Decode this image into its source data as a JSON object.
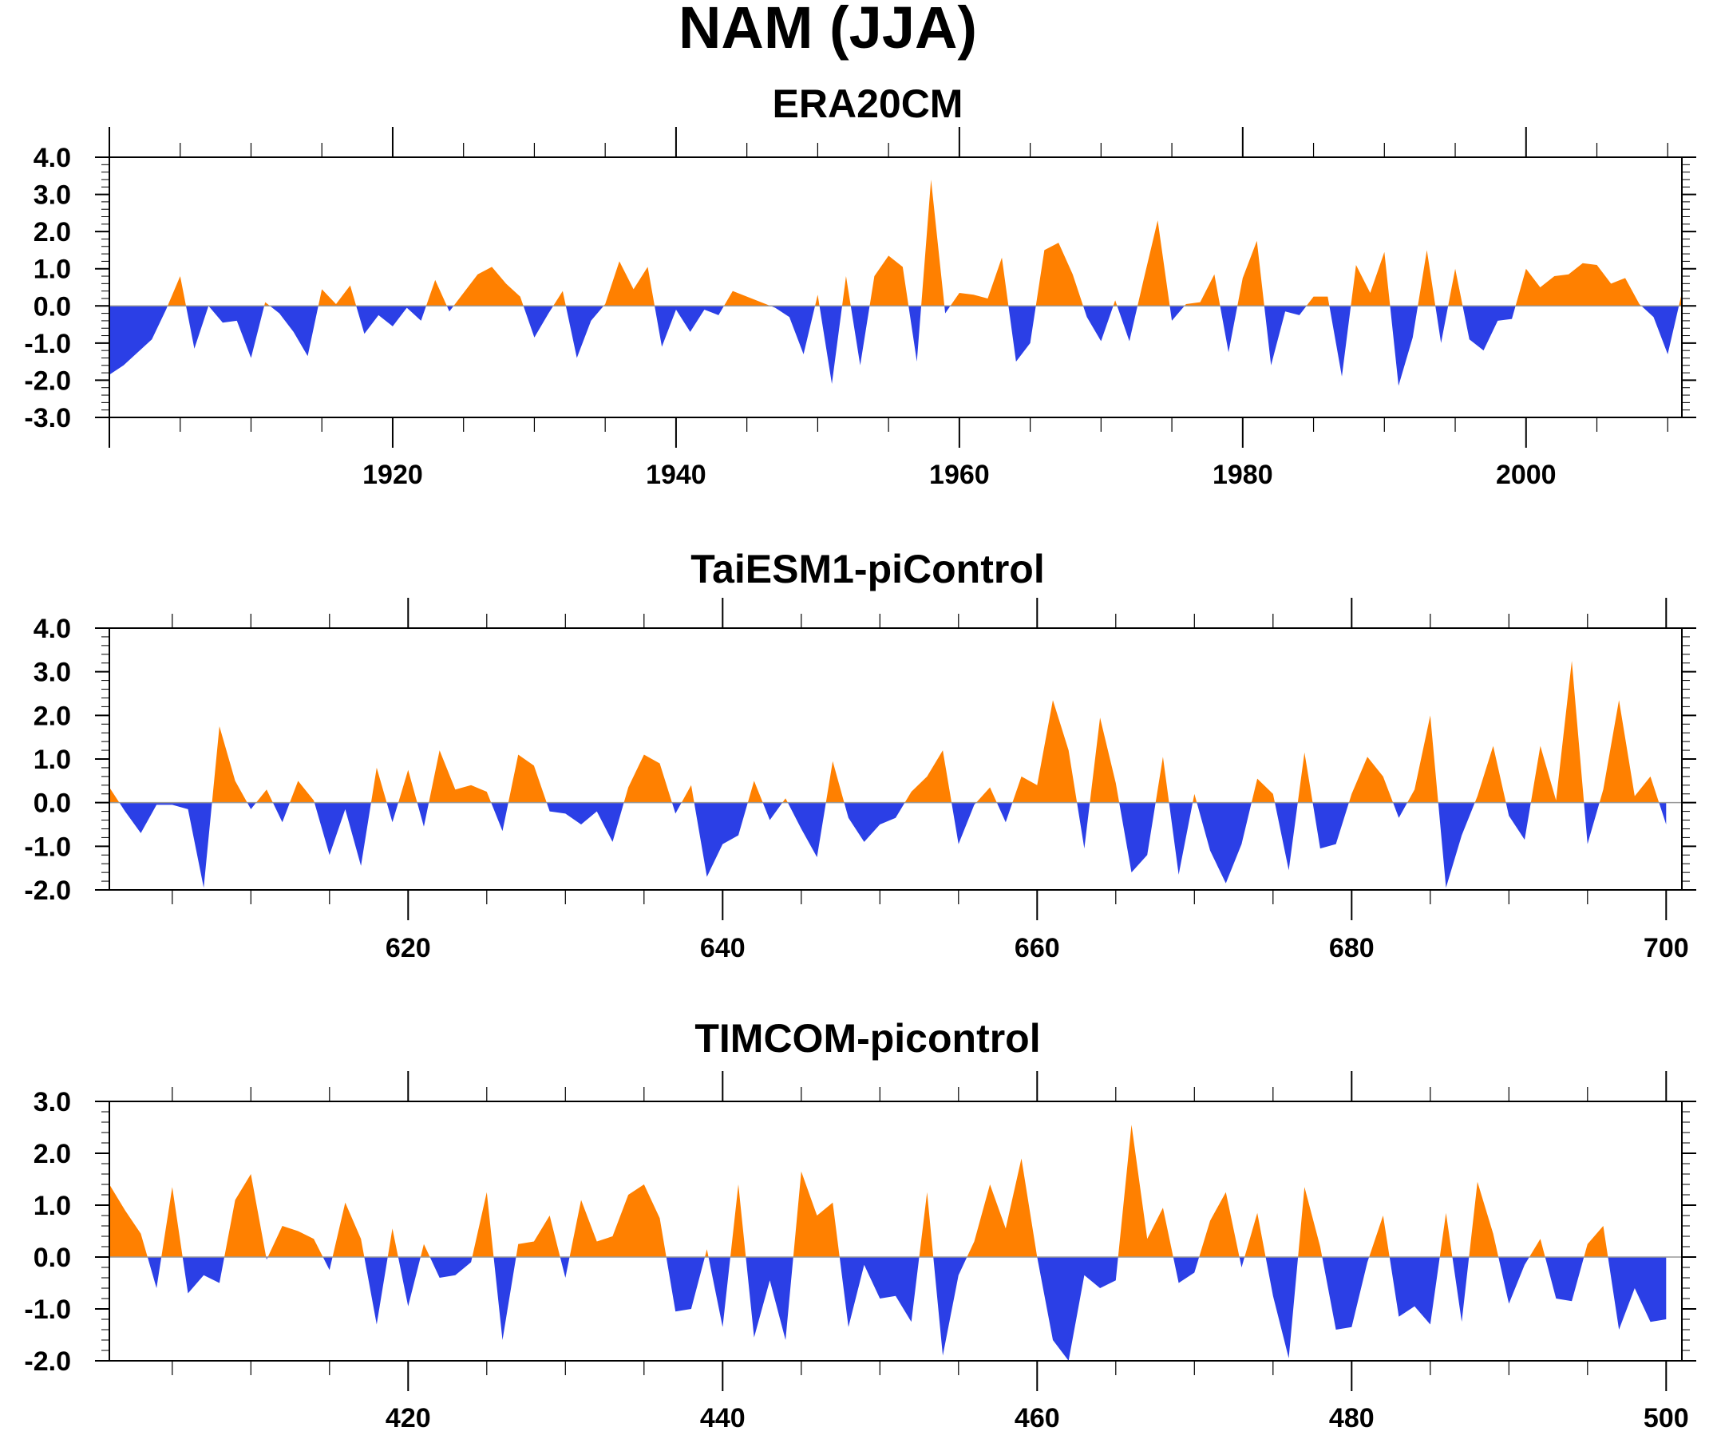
{
  "figure": {
    "title": "NAM (JJA)"
  },
  "colors": {
    "positive": "#ff8000",
    "negative": "#2b3fe6",
    "axis": "#000000"
  },
  "chart_data": [
    {
      "type": "area",
      "title": "ERA20CM",
      "xlabel": "",
      "ylabel": "",
      "xlim": [
        1900,
        2011
      ],
      "ylim": [
        -3.0,
        4.0
      ],
      "yticks": [
        -3.0,
        -2.0,
        -1.0,
        0.0,
        1.0,
        2.0,
        3.0,
        4.0
      ],
      "yticklabels": [
        "-3.0",
        "-2.0",
        "-1.0",
        "0.0",
        "1.0",
        "2.0",
        "3.0",
        "4.0"
      ],
      "xticks": [
        1920,
        1940,
        1960,
        1980,
        2000
      ],
      "xticklabels": [
        "1920",
        "1940",
        "1960",
        "1980",
        "2000"
      ],
      "fill_above_zero": "positive",
      "fill_below_zero": "negative",
      "x": [
        1900,
        1901,
        1902,
        1903,
        1904,
        1905,
        1906,
        1907,
        1908,
        1909,
        1910,
        1911,
        1912,
        1913,
        1914,
        1915,
        1916,
        1917,
        1918,
        1919,
        1920,
        1921,
        1922,
        1923,
        1924,
        1925,
        1926,
        1927,
        1928,
        1929,
        1930,
        1931,
        1932,
        1933,
        1934,
        1935,
        1936,
        1937,
        1938,
        1939,
        1940,
        1941,
        1942,
        1943,
        1944,
        1945,
        1946,
        1947,
        1948,
        1949,
        1950,
        1951,
        1952,
        1953,
        1954,
        1955,
        1956,
        1957,
        1958,
        1959,
        1960,
        1961,
        1962,
        1963,
        1964,
        1965,
        1966,
        1967,
        1968,
        1969,
        1970,
        1971,
        1972,
        1973,
        1974,
        1975,
        1976,
        1977,
        1978,
        1979,
        1980,
        1981,
        1982,
        1983,
        1984,
        1985,
        1986,
        1987,
        1988,
        1989,
        1990,
        1991,
        1992,
        1993,
        1994,
        1995,
        1996,
        1997,
        1998,
        1999,
        2000,
        2001,
        2002,
        2003,
        2004,
        2005,
        2006,
        2007,
        2008,
        2009,
        2010,
        2011
      ],
      "values": [
        -1.85,
        -1.6,
        -1.25,
        -0.9,
        -0.1,
        0.8,
        -1.15,
        0.0,
        -0.45,
        -0.4,
        -1.4,
        0.1,
        -0.2,
        -0.7,
        -1.35,
        0.45,
        0.05,
        0.55,
        -0.75,
        -0.25,
        -0.55,
        -0.05,
        -0.4,
        0.7,
        -0.15,
        0.35,
        0.85,
        1.05,
        0.6,
        0.25,
        -0.85,
        -0.2,
        0.4,
        -1.4,
        -0.4,
        0.05,
        1.2,
        0.45,
        1.05,
        -1.1,
        -0.1,
        -0.7,
        -0.1,
        -0.25,
        0.4,
        0.25,
        0.1,
        -0.05,
        -0.3,
        -1.3,
        0.3,
        -2.1,
        0.8,
        -1.6,
        0.8,
        1.35,
        1.05,
        -1.5,
        3.4,
        -0.2,
        0.35,
        0.3,
        0.2,
        1.3,
        -1.5,
        -1.0,
        1.5,
        1.7,
        0.85,
        -0.3,
        -0.95,
        0.15,
        -0.95,
        0.7,
        2.3,
        -0.4,
        0.05,
        0.1,
        0.85,
        -1.25,
        0.75,
        1.75,
        -1.6,
        -0.15,
        -0.25,
        0.25,
        0.25,
        -1.9,
        1.1,
        0.35,
        1.45,
        -2.15,
        -0.85,
        1.5,
        -1.0,
        1.0,
        -0.9,
        -1.2,
        -0.4,
        -0.35,
        1.0,
        0.5,
        0.8,
        0.85,
        1.15,
        1.1,
        0.6,
        0.75,
        0.05,
        -0.3,
        -1.3,
        0.35
      ]
    },
    {
      "type": "area",
      "title": "TaiESM1-piControl",
      "xlabel": "",
      "ylabel": "",
      "xlim": [
        601,
        701
      ],
      "ylim": [
        -2.0,
        4.0
      ],
      "yticks": [
        -2.0,
        -1.0,
        0.0,
        1.0,
        2.0,
        3.0,
        4.0
      ],
      "yticklabels": [
        "-2.0",
        "-1.0",
        "0.0",
        "1.0",
        "2.0",
        "3.0",
        "4.0"
      ],
      "xticks": [
        620,
        640,
        660,
        680,
        700
      ],
      "xticklabels": [
        "620",
        "640",
        "660",
        "680",
        "700"
      ],
      "fill_above_zero": "positive",
      "fill_below_zero": "negative",
      "x": [
        601,
        602,
        603,
        604,
        605,
        606,
        607,
        608,
        609,
        610,
        611,
        612,
        613,
        614,
        615,
        616,
        617,
        618,
        619,
        620,
        621,
        622,
        623,
        624,
        625,
        626,
        627,
        628,
        629,
        630,
        631,
        632,
        633,
        634,
        635,
        636,
        637,
        638,
        639,
        640,
        641,
        642,
        643,
        644,
        645,
        646,
        647,
        648,
        649,
        650,
        651,
        652,
        653,
        654,
        655,
        656,
        657,
        658,
        659,
        660,
        661,
        662,
        663,
        664,
        665,
        666,
        667,
        668,
        669,
        670,
        671,
        672,
        673,
        674,
        675,
        676,
        677,
        678,
        679,
        680,
        681,
        682,
        683,
        684,
        685,
        686,
        687,
        688,
        689,
        690,
        691,
        692,
        693,
        694,
        695,
        696,
        697,
        698,
        699,
        700
      ],
      "values": [
        0.35,
        -0.2,
        -0.7,
        -0.05,
        -0.05,
        -0.15,
        -1.95,
        1.75,
        0.5,
        -0.15,
        0.3,
        -0.45,
        0.5,
        0.05,
        -1.2,
        -0.15,
        -1.45,
        0.8,
        -0.45,
        0.75,
        -0.55,
        1.2,
        0.3,
        0.4,
        0.25,
        -0.65,
        1.1,
        0.85,
        -0.2,
        -0.25,
        -0.5,
        -0.2,
        -0.9,
        0.35,
        1.1,
        0.9,
        -0.25,
        0.4,
        -1.7,
        -0.95,
        -0.75,
        0.5,
        -0.4,
        0.1,
        -0.6,
        -1.25,
        0.95,
        -0.35,
        -0.9,
        -0.5,
        -0.35,
        0.25,
        0.6,
        1.2,
        -0.95,
        -0.05,
        0.35,
        -0.45,
        0.6,
        0.4,
        2.35,
        1.2,
        -1.05,
        1.95,
        0.45,
        -1.6,
        -1.2,
        1.05,
        -1.65,
        0.2,
        -1.1,
        -1.85,
        -0.95,
        0.55,
        0.2,
        -1.55,
        1.15,
        -1.05,
        -0.95,
        0.2,
        1.05,
        0.6,
        -0.35,
        0.3,
        2.0,
        -1.95,
        -0.75,
        0.15,
        1.3,
        -0.3,
        -0.85,
        1.3,
        0.05,
        3.25,
        -0.95,
        0.3,
        2.35,
        0.15,
        0.6,
        -0.5
      ]
    },
    {
      "type": "area",
      "title": "TIMCOM-picontrol",
      "xlabel": "",
      "ylabel": "",
      "xlim": [
        401,
        501
      ],
      "ylim": [
        -2.0,
        3.0
      ],
      "yticks": [
        -2.0,
        -1.0,
        0.0,
        1.0,
        2.0,
        3.0
      ],
      "yticklabels": [
        "-2.0",
        "-1.0",
        "0.0",
        "1.0",
        "2.0",
        "3.0"
      ],
      "xticks": [
        420,
        440,
        460,
        480,
        500
      ],
      "xticklabels": [
        "420",
        "440",
        "460",
        "480",
        "500"
      ],
      "fill_above_zero": "positive",
      "fill_below_zero": "negative",
      "x": [
        401,
        402,
        403,
        404,
        405,
        406,
        407,
        408,
        409,
        410,
        411,
        412,
        413,
        414,
        415,
        416,
        417,
        418,
        419,
        420,
        421,
        422,
        423,
        424,
        425,
        426,
        427,
        428,
        429,
        430,
        431,
        432,
        433,
        434,
        435,
        436,
        437,
        438,
        439,
        440,
        441,
        442,
        443,
        444,
        445,
        446,
        447,
        448,
        449,
        450,
        451,
        452,
        453,
        454,
        455,
        456,
        457,
        458,
        459,
        460,
        461,
        462,
        463,
        464,
        465,
        466,
        467,
        468,
        469,
        470,
        471,
        472,
        473,
        474,
        475,
        476,
        477,
        478,
        479,
        480,
        481,
        482,
        483,
        484,
        485,
        486,
        487,
        488,
        489,
        490,
        491,
        492,
        493,
        494,
        495,
        496,
        497,
        498,
        499,
        500
      ],
      "values": [
        1.4,
        0.9,
        0.45,
        -0.6,
        1.35,
        -0.7,
        -0.35,
        -0.5,
        1.1,
        1.6,
        -0.05,
        0.6,
        0.5,
        0.35,
        -0.25,
        1.05,
        0.35,
        -1.3,
        0.55,
        -0.95,
        0.25,
        -0.4,
        -0.35,
        -0.1,
        1.25,
        -1.6,
        0.25,
        0.3,
        0.8,
        -0.4,
        1.1,
        0.3,
        0.4,
        1.2,
        1.4,
        0.75,
        -1.05,
        -1.0,
        0.15,
        -1.35,
        1.4,
        -1.55,
        -0.45,
        -1.6,
        1.65,
        0.8,
        1.05,
        -1.35,
        -0.15,
        -0.8,
        -0.75,
        -1.25,
        1.25,
        -1.9,
        -0.35,
        0.3,
        1.4,
        0.55,
        1.9,
        0.0,
        -1.6,
        -2.0,
        -0.35,
        -0.6,
        -0.45,
        2.55,
        0.35,
        0.95,
        -0.5,
        -0.3,
        0.7,
        1.25,
        -0.2,
        0.85,
        -0.75,
        -1.95,
        1.35,
        0.2,
        -1.4,
        -1.35,
        -0.1,
        0.8,
        -1.15,
        -0.95,
        -1.3,
        0.85,
        -1.25,
        1.45,
        0.45,
        -0.9,
        -0.15,
        0.35,
        -0.8,
        -0.85,
        0.25,
        0.6,
        -1.4,
        -0.6,
        -1.25,
        -1.2
      ]
    }
  ]
}
